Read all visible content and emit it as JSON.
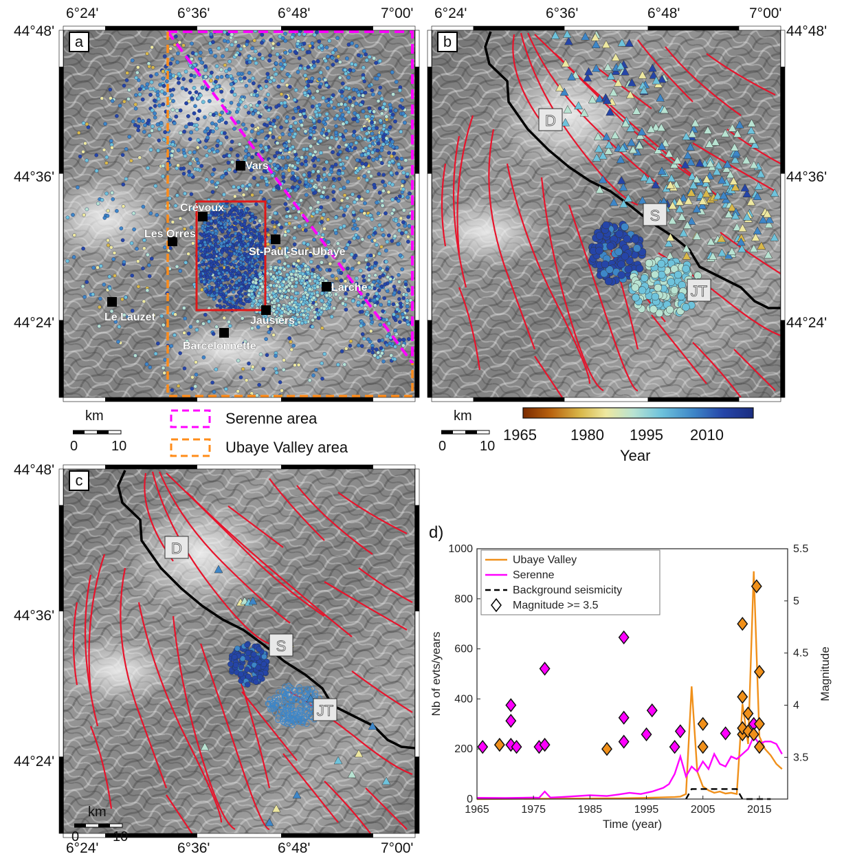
{
  "map_labels": {
    "top": [
      "6°24'",
      "6°36'",
      "6°48'",
      "7°00'"
    ],
    "left": [
      "44°48'",
      "44°36'",
      "44°24'"
    ]
  },
  "panel_a": {
    "letter": "a",
    "towns": [
      "Vars",
      "Crévoux",
      "Les Orres",
      "St-Paul-Sur-Ubaye",
      "Larche",
      "Le Lauzet",
      "Jausiers",
      "Barcelonnette"
    ]
  },
  "panel_b": {
    "letter": "b",
    "faults": [
      "D",
      "S",
      "JT"
    ]
  },
  "panel_c": {
    "letter": "c",
    "faults": [
      "D",
      "S",
      "JT"
    ]
  },
  "legend": {
    "serenne": "Serenne area",
    "ubaye": "Ubaye Valley area"
  },
  "scale_bar": {
    "unit": "km",
    "min": "0",
    "max": "10"
  },
  "colorbar": {
    "ticks": [
      "1965",
      "1980",
      "1995",
      "2010"
    ],
    "label": "Year",
    "gradient": [
      "#7a2a00",
      "#b8620e",
      "#d9b84a",
      "#eee8a0",
      "#b8e3d2",
      "#6ec3dc",
      "#3d86c8",
      "#2545a8",
      "#1a2d80"
    ]
  },
  "colors": {
    "fault": "#e8132b",
    "serenne": "#ff00ff",
    "ubaye": "#ff8c1a",
    "study_box": "#e01818",
    "event_blue": "#2e58b8"
  },
  "chart_data": {
    "type": "line",
    "panel_label": "d)",
    "xlabel": "Time (year)",
    "ylabel_left": "Nb of evts/years",
    "ylabel_right": "Magnitude",
    "xlim": [
      1965,
      2020
    ],
    "ylim_left": [
      0,
      1000
    ],
    "ylim_right": [
      3.1,
      5.5
    ],
    "x_ticks": [
      "1965",
      "1975",
      "1985",
      "1995",
      "2005",
      "2015"
    ],
    "y_left_ticks": [
      "0",
      "200",
      "400",
      "600",
      "800",
      "1000"
    ],
    "y_right_ticks": [
      "3.5",
      "4",
      "4.5",
      "5",
      "5.5"
    ],
    "legend": [
      "Ubaye Valley",
      "Serenne",
      "Background seismicity",
      "Magnitude >= 3.5"
    ],
    "series": [
      {
        "name": "Ubaye Valley",
        "color": "#f0901a",
        "x": [
          1965,
          1980,
          1990,
          1995,
          2000,
          2001,
          2002,
          2003,
          2004,
          2005,
          2006,
          2007,
          2008,
          2009,
          2010,
          2011,
          2012,
          2013,
          2014,
          2015,
          2016,
          2017,
          2018,
          2019
        ],
        "y": [
          0,
          2,
          3,
          5,
          8,
          10,
          20,
          450,
          110,
          50,
          35,
          25,
          30,
          22,
          25,
          20,
          380,
          220,
          910,
          250,
          200,
          175,
          140,
          120
        ]
      },
      {
        "name": "Serenne",
        "color": "#ff00ff",
        "x": [
          1965,
          1970,
          1975,
          1976,
          1977,
          1978,
          1980,
          1985,
          1988,
          1990,
          1992,
          1994,
          1996,
          1998,
          1999,
          2000,
          2001,
          2002,
          2003,
          2004,
          2005,
          2006,
          2007,
          2008,
          2009,
          2010,
          2011,
          2012,
          2013,
          2014,
          2015,
          2016,
          2017,
          2018,
          2019
        ],
        "y": [
          5,
          4,
          6,
          5,
          30,
          6,
          8,
          15,
          12,
          18,
          25,
          20,
          30,
          45,
          60,
          100,
          170,
          90,
          130,
          110,
          150,
          120,
          180,
          140,
          130,
          170,
          160,
          180,
          200,
          250,
          220,
          230,
          230,
          220,
          180
        ]
      },
      {
        "name": "Background seismicity",
        "color": "#000000",
        "dash": true,
        "x": [
          2002,
          2003,
          2004,
          2005,
          2011,
          2012,
          2013,
          2014,
          2015,
          2016,
          2017
        ],
        "y": [
          0,
          40,
          40,
          40,
          40,
          0,
          0,
          0,
          0,
          0,
          0
        ]
      }
    ],
    "magnitude_points": [
      {
        "x": 1966,
        "mag": 3.6,
        "region": "Serenne"
      },
      {
        "x": 1969,
        "mag": 3.62,
        "region": "Ubaye Valley"
      },
      {
        "x": 1971,
        "mag": 3.62,
        "region": "Serenne"
      },
      {
        "x": 1971,
        "mag": 3.85,
        "region": "Serenne"
      },
      {
        "x": 1971,
        "mag": 4.0,
        "region": "Serenne"
      },
      {
        "x": 1972,
        "mag": 3.6,
        "region": "Serenne"
      },
      {
        "x": 1976,
        "mag": 3.6,
        "region": "Serenne"
      },
      {
        "x": 1977,
        "mag": 3.62,
        "region": "Serenne"
      },
      {
        "x": 1977,
        "mag": 4.35,
        "region": "Serenne"
      },
      {
        "x": 1988,
        "mag": 3.58,
        "region": "Ubaye Valley"
      },
      {
        "x": 1991,
        "mag": 3.65,
        "region": "Serenne"
      },
      {
        "x": 1991,
        "mag": 3.88,
        "region": "Serenne"
      },
      {
        "x": 1991,
        "mag": 4.65,
        "region": "Serenne"
      },
      {
        "x": 1995,
        "mag": 3.72,
        "region": "Serenne"
      },
      {
        "x": 1996,
        "mag": 3.95,
        "region": "Serenne"
      },
      {
        "x": 2000,
        "mag": 3.6,
        "region": "Serenne"
      },
      {
        "x": 2001,
        "mag": 3.75,
        "region": "Serenne"
      },
      {
        "x": 2005,
        "mag": 3.6,
        "region": "Ubaye Valley"
      },
      {
        "x": 2005,
        "mag": 3.82,
        "region": "Ubaye Valley"
      },
      {
        "x": 2009,
        "mag": 3.73,
        "region": "Serenne"
      },
      {
        "x": 2012,
        "mag": 3.72,
        "region": "Ubaye Valley"
      },
      {
        "x": 2012,
        "mag": 3.78,
        "region": "Ubaye Valley"
      },
      {
        "x": 2012,
        "mag": 4.08,
        "region": "Ubaye Valley"
      },
      {
        "x": 2012,
        "mag": 4.78,
        "region": "Ubaye Valley"
      },
      {
        "x": 2013,
        "mag": 3.92,
        "region": "Ubaye Valley"
      },
      {
        "x": 2013,
        "mag": 3.75,
        "region": "Ubaye Valley"
      },
      {
        "x": 2014,
        "mag": 3.82,
        "region": "Serenne"
      },
      {
        "x": 2014,
        "mag": 3.72,
        "region": "Ubaye Valley"
      },
      {
        "x": 2015,
        "mag": 3.6,
        "region": "Ubaye Valley"
      },
      {
        "x": 2015,
        "mag": 3.82,
        "region": "Ubaye Valley"
      },
      {
        "x": 2015,
        "mag": 4.32,
        "region": "Ubaye Valley"
      },
      {
        "x": 2014.5,
        "mag": 5.14,
        "region": "Ubaye Valley"
      }
    ]
  }
}
